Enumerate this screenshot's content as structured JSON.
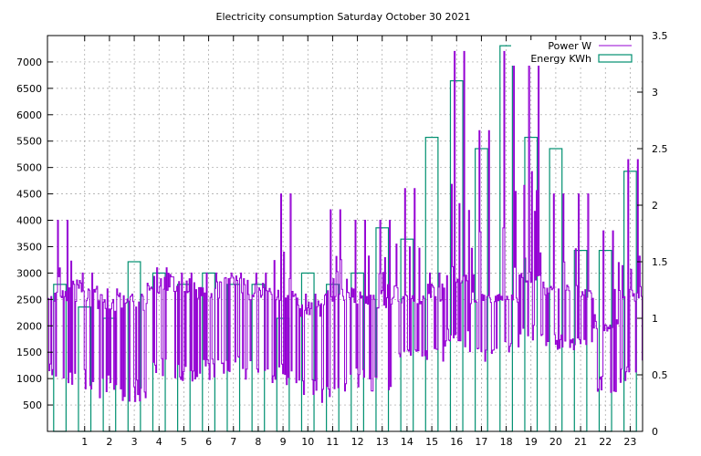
{
  "chart_data": {
    "type": "bar+line",
    "title": "Electricity consumption Saturday October 30 2021",
    "x": {
      "range": [
        -0.5,
        23.5
      ],
      "ticks": [
        1,
        2,
        3,
        4,
        5,
        6,
        7,
        8,
        9,
        10,
        11,
        12,
        13,
        14,
        15,
        16,
        17,
        18,
        19,
        20,
        21,
        22,
        23
      ]
    },
    "y_left": {
      "range": [
        0,
        7500
      ],
      "ticks": [
        500,
        1000,
        1500,
        2000,
        2500,
        3000,
        3500,
        4000,
        4500,
        5000,
        5500,
        6000,
        6500,
        7000
      ]
    },
    "y_right": {
      "range": [
        0,
        3.5
      ],
      "ticks": [
        0,
        0.5,
        1,
        1.5,
        2,
        2.5,
        3,
        3.5
      ]
    },
    "grid": true,
    "legend_position": "top-right",
    "series": [
      {
        "name": "Power W",
        "type": "line",
        "axis": "left",
        "color": "#9400d3",
        "hourly_min": [
          820,
          800,
          620,
          550,
          980,
          950,
          900,
          960,
          950,
          880,
          600,
          520,
          700,
          720,
          1300,
          1300,
          1600,
          1300,
          1500,
          1700,
          1550,
          1500,
          700,
          900
        ],
        "hourly_max": [
          4000,
          3000,
          2700,
          2600,
          3100,
          3000,
          3000,
          3000,
          3000,
          4500,
          2600,
          4200,
          4000,
          4000,
          4600,
          3000,
          7200,
          5700,
          7200,
          7200,
          4500,
          4500,
          3800,
          5150
        ],
        "hourly_typical": [
          2750,
          2750,
          2550,
          2550,
          2900,
          2900,
          2800,
          2900,
          2750,
          2750,
          2450,
          2700,
          2700,
          2600,
          2600,
          2600,
          3000,
          2600,
          2600,
          3000,
          2750,
          2700,
          2100,
          2700
        ]
      },
      {
        "name": "Energy KWh",
        "type": "bar",
        "axis": "right",
        "color": "#009070",
        "hours": [
          0,
          1,
          2,
          3,
          4,
          5,
          6,
          7,
          8,
          9,
          10,
          11,
          12,
          13,
          14,
          15,
          16,
          17,
          18,
          19,
          20,
          21,
          22,
          23
        ],
        "values": [
          1.3,
          1.1,
          1.0,
          1.5,
          1.4,
          1.3,
          1.4,
          1.3,
          1.3,
          1.0,
          1.4,
          1.3,
          1.4,
          1.8,
          1.7,
          2.6,
          3.1,
          2.5,
          3.41,
          2.6,
          2.5,
          1.6,
          1.6,
          2.3
        ]
      }
    ]
  }
}
